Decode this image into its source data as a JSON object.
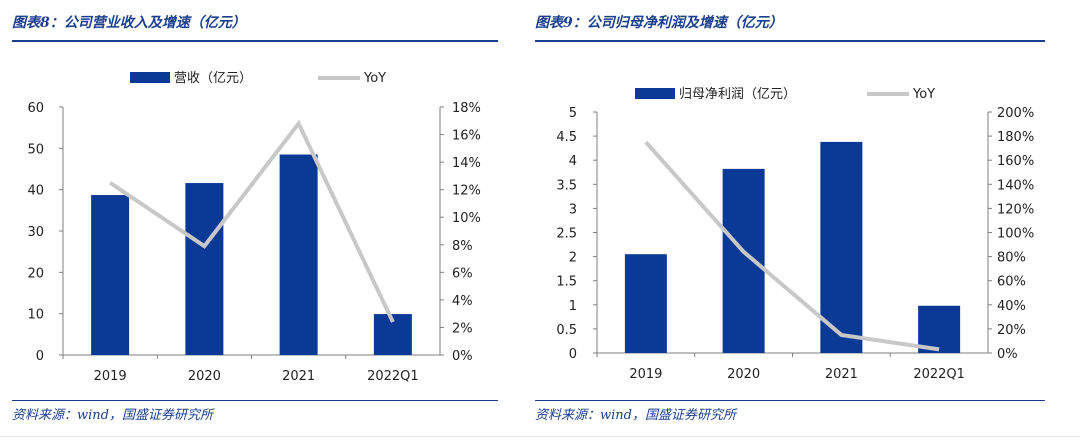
{
  "left": {
    "title": "图表8：公司营业收入及增速（亿元）",
    "source": "资料来源：wind，国盛证券研究所"
  },
  "right": {
    "title": "图表9：公司归母净利润及增速（亿元）",
    "source": "资料来源：wind，国盛证券研究所"
  },
  "colors": {
    "bar": "#0b3a96",
    "line": "#c8c8c8",
    "accent": "#1a3f8f"
  },
  "chart_data": [
    {
      "type": "bar",
      "categories": [
        "2019",
        "2020",
        "2021",
        "2022Q1"
      ],
      "series": [
        {
          "name": "营收（亿元）",
          "type": "bar",
          "axis": "left",
          "values": [
            38.7,
            41.6,
            48.5,
            9.9
          ]
        },
        {
          "name": "YoY",
          "type": "line",
          "axis": "right",
          "values": [
            12.5,
            7.9,
            16.8,
            2.4
          ]
        }
      ],
      "ylim": [
        0,
        60
      ],
      "yticks": [
        "0",
        "10",
        "20",
        "30",
        "40",
        "50",
        "60"
      ],
      "y2lim": [
        0,
        18
      ],
      "y2ticks": [
        "0%",
        "2%",
        "4%",
        "6%",
        "8%",
        "10%",
        "12%",
        "14%",
        "16%",
        "18%"
      ],
      "legend": "top-center"
    },
    {
      "type": "bar",
      "categories": [
        "2019",
        "2020",
        "2021",
        "2022Q1"
      ],
      "series": [
        {
          "name": "归母净利润（亿元）",
          "type": "bar",
          "axis": "left",
          "values": [
            2.05,
            3.82,
            4.38,
            0.98
          ]
        },
        {
          "name": "YoY",
          "type": "line",
          "axis": "right",
          "values": [
            175,
            84,
            15,
            3
          ]
        }
      ],
      "ylim": [
        0,
        5
      ],
      "yticks": [
        "0",
        "0.5",
        "1",
        "1.5",
        "2",
        "2.5",
        "3",
        "3.5",
        "4",
        "4.5",
        "5"
      ],
      "y2lim": [
        0,
        200
      ],
      "y2ticks": [
        "0%",
        "20%",
        "40%",
        "60%",
        "80%",
        "100%",
        "120%",
        "140%",
        "160%",
        "180%",
        "200%"
      ],
      "legend": "top-center"
    }
  ]
}
